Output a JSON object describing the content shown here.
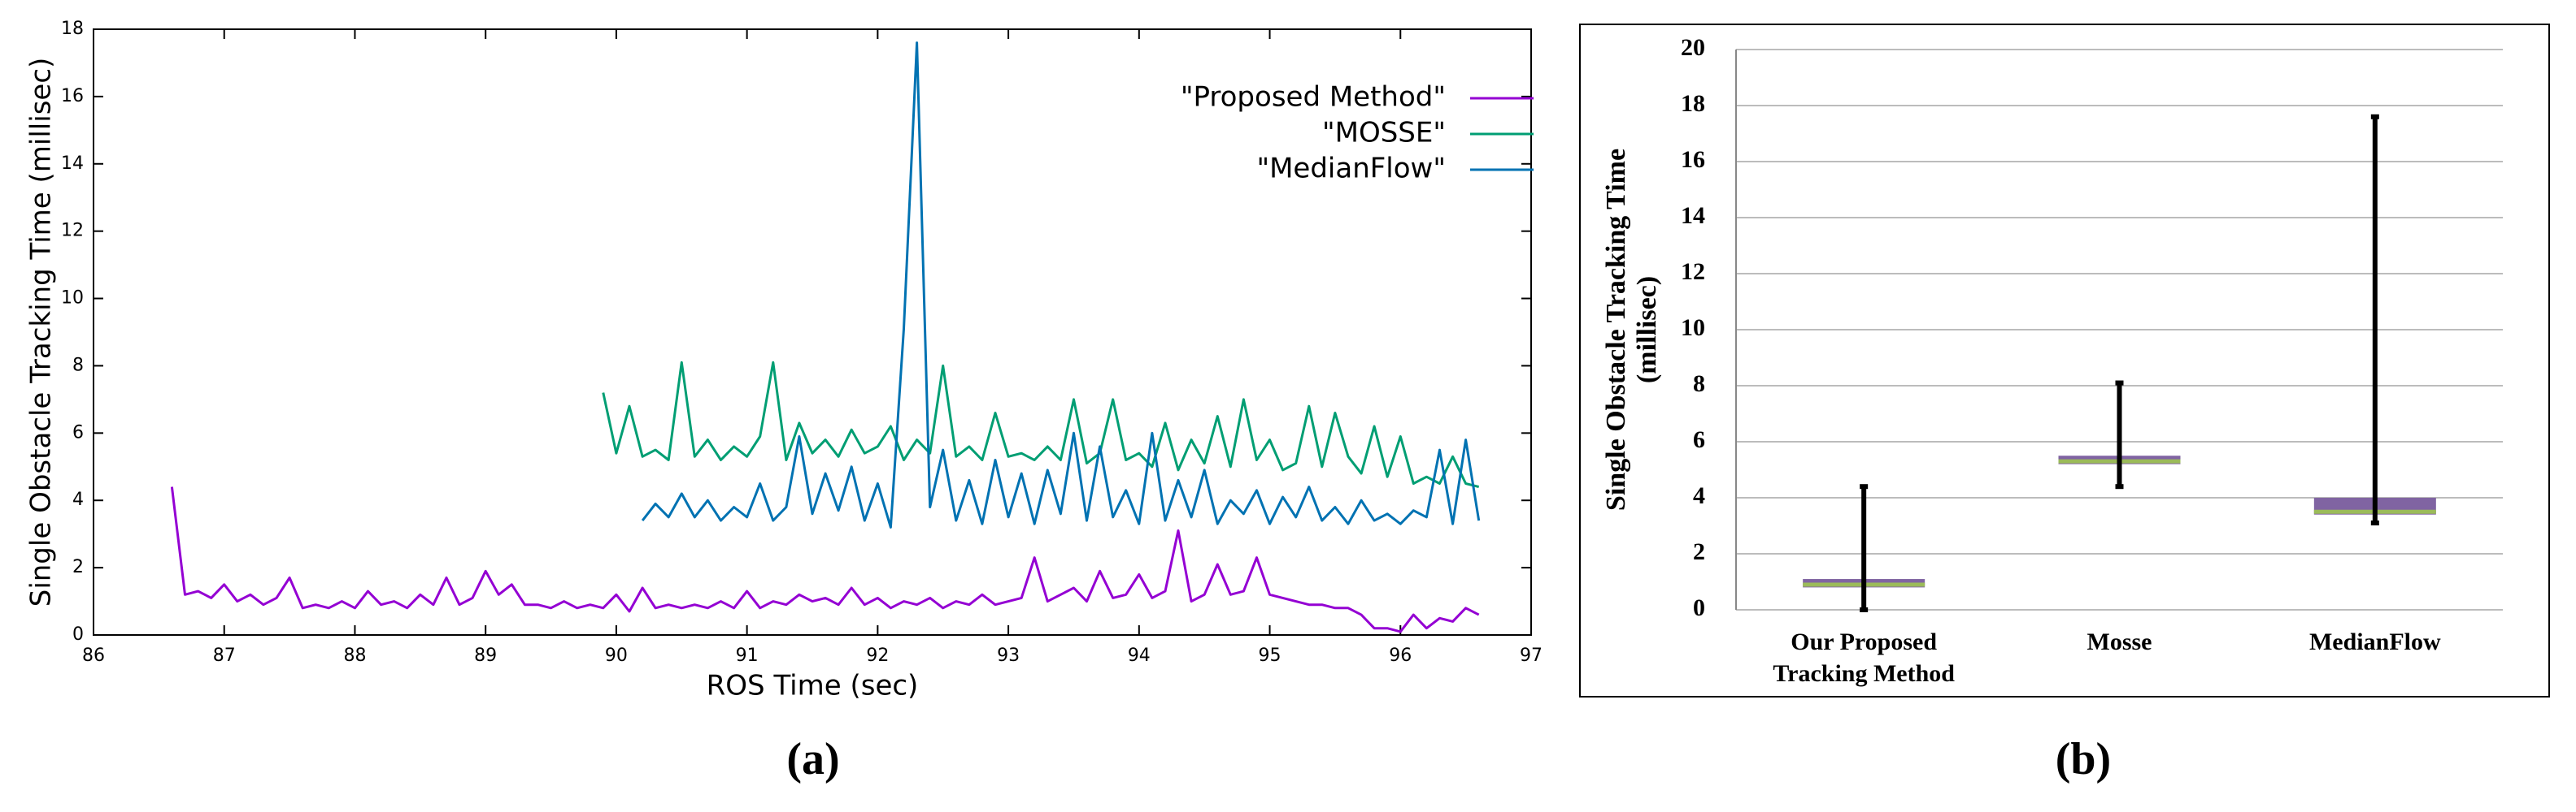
{
  "chart_data": [
    {
      "type": "line",
      "caption": "(a)",
      "xlabel": "ROS Time (sec)",
      "ylabel": "Single Obstacle Tracking Time (millisec)",
      "xlim": [
        86,
        97
      ],
      "xticks": [
        86,
        87,
        88,
        89,
        90,
        91,
        92,
        93,
        94,
        95,
        96,
        97
      ],
      "ylim": [
        0,
        18
      ],
      "yticks": [
        0,
        2,
        4,
        6,
        8,
        10,
        12,
        14,
        16,
        18
      ],
      "legend": "upper right",
      "grid": false,
      "series": [
        {
          "name": "\"Proposed Method\"",
          "color": "#9400d3",
          "x": [
            86.6,
            86.7,
            86.8,
            86.9,
            87,
            87.1,
            87.2,
            87.3,
            87.4,
            87.5,
            87.6,
            87.7,
            87.8,
            87.9,
            88,
            88.1,
            88.2,
            88.3,
            88.4,
            88.5,
            88.6,
            88.7,
            88.8,
            88.9,
            89,
            89.1,
            89.2,
            89.3,
            89.4,
            89.5,
            89.6,
            89.7,
            89.8,
            89.9,
            90,
            90.1,
            90.2,
            90.3,
            90.4,
            90.5,
            90.6,
            90.7,
            90.8,
            90.9,
            91,
            91.1,
            91.2,
            91.3,
            91.4,
            91.5,
            91.6,
            91.7,
            91.8,
            91.9,
            92,
            92.1,
            92.2,
            92.3,
            92.4,
            92.5,
            92.6,
            92.7,
            92.8,
            92.9,
            93,
            93.1,
            93.2,
            93.3,
            93.4,
            93.5,
            93.6,
            93.7,
            93.8,
            93.9,
            94,
            94.1,
            94.2,
            94.3,
            94.4,
            94.5,
            94.6,
            94.7,
            94.8,
            94.9,
            95,
            95.1,
            95.2,
            95.3,
            95.4,
            95.5,
            95.6,
            95.7,
            95.8,
            95.9,
            96,
            96.1,
            96.2,
            96.3,
            96.4,
            96.5,
            96.6
          ],
          "values": [
            4.4,
            1.2,
            1.3,
            1.1,
            1.5,
            1.0,
            1.2,
            0.9,
            1.1,
            1.7,
            0.8,
            0.9,
            0.8,
            1.0,
            0.8,
            1.3,
            0.9,
            1.0,
            0.8,
            1.2,
            0.9,
            1.7,
            0.9,
            1.1,
            1.9,
            1.2,
            1.5,
            0.9,
            0.9,
            0.8,
            1.0,
            0.8,
            0.9,
            0.8,
            1.2,
            0.7,
            1.4,
            0.8,
            0.9,
            0.8,
            0.9,
            0.8,
            1.0,
            0.8,
            1.3,
            0.8,
            1.0,
            0.9,
            1.2,
            1.0,
            1.1,
            0.9,
            1.4,
            0.9,
            1.1,
            0.8,
            1.0,
            0.9,
            1.1,
            0.8,
            1.0,
            0.9,
            1.2,
            0.9,
            1.0,
            1.1,
            2.3,
            1.0,
            1.2,
            1.4,
            1.0,
            1.9,
            1.1,
            1.2,
            1.8,
            1.1,
            1.3,
            3.1,
            1.0,
            1.2,
            2.1,
            1.2,
            1.3,
            2.3,
            1.2,
            1.1,
            1.0,
            0.9,
            0.9,
            0.8,
            0.8,
            0.6,
            0.2,
            0.2,
            0.1,
            0.6,
            0.2,
            0.5,
            0.4,
            0.8,
            0.6
          ]
        },
        {
          "name": "\"MOSSE\"",
          "color": "#009e73",
          "x": [
            89.9,
            90,
            90.1,
            90.2,
            90.3,
            90.4,
            90.5,
            90.6,
            90.7,
            90.8,
            90.9,
            91,
            91.1,
            91.2,
            91.3,
            91.4,
            91.5,
            91.6,
            91.7,
            91.8,
            91.9,
            92,
            92.1,
            92.2,
            92.3,
            92.4,
            92.5,
            92.6,
            92.7,
            92.8,
            92.9,
            93,
            93.1,
            93.2,
            93.3,
            93.4,
            93.5,
            93.6,
            93.7,
            93.8,
            93.9,
            94,
            94.1,
            94.2,
            94.3,
            94.4,
            94.5,
            94.6,
            94.7,
            94.8,
            94.9,
            95,
            95.1,
            95.2,
            95.3,
            95.4,
            95.5,
            95.6,
            95.7,
            95.8,
            95.9,
            96,
            96.1,
            96.2,
            96.3,
            96.4,
            96.5,
            96.6
          ],
          "values": [
            7.2,
            5.4,
            6.8,
            5.3,
            5.5,
            5.2,
            8.1,
            5.3,
            5.8,
            5.2,
            5.6,
            5.3,
            5.9,
            8.1,
            5.2,
            6.3,
            5.4,
            5.8,
            5.3,
            6.1,
            5.4,
            5.6,
            6.2,
            5.2,
            5.8,
            5.4,
            8.0,
            5.3,
            5.6,
            5.2,
            6.6,
            5.3,
            5.4,
            5.2,
            5.6,
            5.2,
            7.0,
            5.1,
            5.4,
            7.0,
            5.2,
            5.4,
            5.0,
            6.3,
            4.9,
            5.8,
            5.1,
            6.5,
            5.0,
            7.0,
            5.2,
            5.8,
            4.9,
            5.1,
            6.8,
            5.0,
            6.6,
            5.3,
            4.8,
            6.2,
            4.7,
            5.9,
            4.5,
            4.7,
            4.5,
            5.3,
            4.5,
            4.4
          ]
        },
        {
          "name": "\"MedianFlow\"",
          "color": "#0072b2",
          "x": [
            90.2,
            90.3,
            90.4,
            90.5,
            90.6,
            90.7,
            90.8,
            90.9,
            91,
            91.1,
            91.2,
            91.3,
            91.4,
            91.5,
            91.6,
            91.7,
            91.8,
            91.9,
            92,
            92.1,
            92.2,
            92.3,
            92.4,
            92.5,
            92.6,
            92.7,
            92.8,
            92.9,
            93,
            93.1,
            93.2,
            93.3,
            93.4,
            93.5,
            93.6,
            93.7,
            93.8,
            93.9,
            94,
            94.1,
            94.2,
            94.3,
            94.4,
            94.5,
            94.6,
            94.7,
            94.8,
            94.9,
            95,
            95.1,
            95.2,
            95.3,
            95.4,
            95.5,
            95.6,
            95.7,
            95.8,
            95.9,
            96,
            96.1,
            96.2,
            96.3,
            96.4,
            96.5,
            96.6
          ],
          "values": [
            3.4,
            3.9,
            3.5,
            4.2,
            3.5,
            4.0,
            3.4,
            3.8,
            3.5,
            4.5,
            3.4,
            3.8,
            5.9,
            3.6,
            4.8,
            3.7,
            5.0,
            3.4,
            4.5,
            3.2,
            9.1,
            17.6,
            3.8,
            5.5,
            3.4,
            4.6,
            3.3,
            5.2,
            3.5,
            4.8,
            3.3,
            4.9,
            3.6,
            6.0,
            3.4,
            5.6,
            3.5,
            4.3,
            3.3,
            6.0,
            3.4,
            4.6,
            3.5,
            4.9,
            3.3,
            4.0,
            3.6,
            4.3,
            3.3,
            4.1,
            3.5,
            4.4,
            3.4,
            3.8,
            3.3,
            4.0,
            3.4,
            3.6,
            3.3,
            3.7,
            3.5,
            5.5,
            3.3,
            5.8,
            3.4
          ]
        }
      ]
    },
    {
      "type": "box",
      "caption": "(b)",
      "ylabel": [
        "Single Obstacle Tracking Time",
        "(millisec)"
      ],
      "ylim": [
        0,
        20
      ],
      "yticks": [
        0,
        2,
        4,
        6,
        8,
        10,
        12,
        14,
        16,
        18,
        20
      ],
      "grid": true,
      "box_color": "#8064a2",
      "median_color": "#9bbb59",
      "whisker_color": "#000000",
      "categories": [
        [
          "Our Proposed",
          "Tracking Method"
        ],
        [
          "Mosse"
        ],
        [
          "MedianFlow"
        ]
      ],
      "boxes": [
        {
          "min": 0,
          "q1": 0.8,
          "median": 0.9,
          "q3": 1.1,
          "max": 4.4
        },
        {
          "min": 4.4,
          "q1": 5.2,
          "median": 5.3,
          "q3": 5.5,
          "max": 8.1
        },
        {
          "min": 3.1,
          "q1": 3.4,
          "median": 3.5,
          "q3": 4.0,
          "max": 17.6
        }
      ]
    }
  ]
}
